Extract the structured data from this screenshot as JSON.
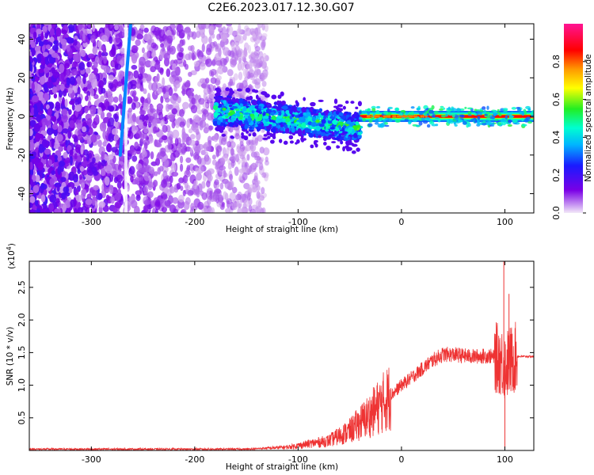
{
  "title": "C2E6.2023.017.12.30.G07",
  "chart_data": [
    {
      "type": "heatmap",
      "name": "spectrogram",
      "xlabel": "Height of straight line (km)",
      "ylabel": "Frequency (Hz)",
      "xlim": [
        -360,
        128
      ],
      "ylim": [
        -50,
        48
      ],
      "xticks": [
        -300,
        -200,
        -100,
        0,
        100
      ],
      "yticks": [
        -40,
        -20,
        0,
        20,
        40
      ],
      "grid": false,
      "colorbar": {
        "label": "Normalized spectral amplitude",
        "range": [
          0,
          1
        ],
        "ticks": [
          0.0,
          0.2,
          0.4,
          0.6,
          0.8
        ],
        "colormap": "rainbow",
        "stops": [
          "#e8d4f0",
          "#7a00e6",
          "#1a1aff",
          "#00b4ff",
          "#00ffd0",
          "#22ee22",
          "#ffff00",
          "#ff9900",
          "#ff0000",
          "#ff1493"
        ]
      },
      "features": [
        {
          "kind": "noise",
          "x_range": [
            -360,
            -130
          ],
          "freq_range": [
            -50,
            48
          ],
          "amplitude": 0.12
        },
        {
          "kind": "streak",
          "x_range": [
            -272,
            -262
          ],
          "freq_range": [
            -20,
            48
          ],
          "amplitude": 0.3
        },
        {
          "kind": "streak",
          "x_range": [
            -268,
            -265
          ],
          "freq_range": [
            -50,
            48
          ],
          "amplitude": 0.0
        },
        {
          "kind": "band",
          "x_range": [
            -180,
            -40
          ],
          "center_freq": [
            3,
            -6
          ],
          "amplitude": 0.4
        },
        {
          "kind": "band",
          "x_range": [
            -40,
            128
          ],
          "center_freq": [
            0,
            0
          ],
          "amplitude": 0.9
        }
      ]
    },
    {
      "type": "line",
      "name": "snr",
      "xlabel": "Height of straight line (km)",
      "ylabel": "SNR (10 * v/v)",
      "scale_label": "(x10",
      "scale_exp": "4",
      "scale_close": ")",
      "xlim": [
        -360,
        128
      ],
      "ylim": [
        0,
        2.9
      ],
      "xticks": [
        -300,
        -200,
        -100,
        0,
        100
      ],
      "yticks": [
        0.5,
        1.0,
        1.5,
        2.0,
        2.5
      ],
      "ytick_labels": [
        "0.5",
        "1.0",
        "1.5",
        "2.0",
        "2.5"
      ],
      "grid": false,
      "color": "#ee3333",
      "envelope": [
        {
          "x": -360,
          "y": 0.02
        },
        {
          "x": -150,
          "y": 0.02
        },
        {
          "x": -110,
          "y": 0.05
        },
        {
          "x": -90,
          "y": 0.1
        },
        {
          "x": -70,
          "y": 0.15
        },
        {
          "x": -50,
          "y": 0.3
        },
        {
          "x": -30,
          "y": 0.55
        },
        {
          "x": -20,
          "y": 0.7
        },
        {
          "x": -10,
          "y": 0.85
        },
        {
          "x": 0,
          "y": 1.0
        },
        {
          "x": 10,
          "y": 1.12
        },
        {
          "x": 20,
          "y": 1.25
        },
        {
          "x": 30,
          "y": 1.38
        },
        {
          "x": 40,
          "y": 1.47
        },
        {
          "x": 50,
          "y": 1.47
        },
        {
          "x": 60,
          "y": 1.45
        },
        {
          "x": 70,
          "y": 1.44
        },
        {
          "x": 85,
          "y": 1.45
        },
        {
          "x": 95,
          "y": 1.4
        },
        {
          "x": 100,
          "y": 1.3
        },
        {
          "x": 108,
          "y": 1.4
        },
        {
          "x": 112,
          "y": 1.44
        },
        {
          "x": 128,
          "y": 1.44
        }
      ],
      "spikes": [
        {
          "x": -18,
          "y": 1.05
        },
        {
          "x": 99,
          "y": 2.9
        },
        {
          "x": 100,
          "y": 0.02
        },
        {
          "x": 104,
          "y": 2.4
        },
        {
          "x": 95,
          "y": 1.7
        }
      ]
    }
  ]
}
